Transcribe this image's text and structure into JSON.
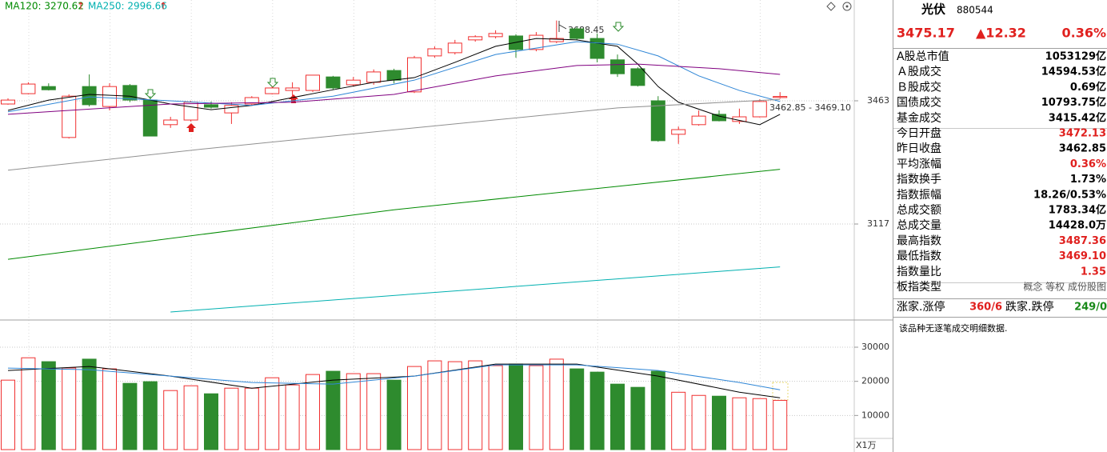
{
  "chart_data": [
    {
      "type": "candlestick",
      "legend_labels": [
        "MA120: 3270.62",
        "MA250: 2996.66"
      ],
      "legend_arrows": [
        "↑",
        "↑"
      ],
      "legend_colors": [
        "#008a00",
        "#00b0b0"
      ],
      "annotations": [
        "3688.45",
        "3462.85 - 3469.10"
      ],
      "up_color": "#f03030",
      "down_color": "#2e8b2e",
      "open": [
        3454,
        3483,
        3503,
        3360,
        3503,
        3447,
        3506,
        3465,
        3396,
        3409,
        3452,
        3429,
        3454,
        3483,
        3492,
        3492,
        3530,
        3508,
        3515,
        3548,
        3488,
        3589,
        3598,
        3634,
        3643,
        3645,
        3607,
        3629,
        3665,
        3638,
        3578,
        3553,
        3463,
        3369,
        3396,
        3425,
        3405,
        3418,
        3472.13
      ],
      "high": [
        3470,
        3515,
        3512,
        3481,
        3537,
        3512,
        3510,
        3476,
        3418,
        3463,
        3461,
        3459,
        3476,
        3503,
        3515,
        3535,
        3533,
        3530,
        3551,
        3553,
        3589,
        3616,
        3634,
        3647,
        3661,
        3650,
        3656,
        3688.45,
        3670,
        3652,
        3593,
        3557,
        3476,
        3391,
        3436,
        3436,
        3441,
        3467,
        3487.36
      ],
      "low": [
        3452,
        3481,
        3492,
        3357,
        3447,
        3436,
        3459,
        3364,
        3387,
        3405,
        3441,
        3398,
        3450,
        3481,
        3459,
        3488,
        3494,
        3503,
        3508,
        3512,
        3485,
        3584,
        3593,
        3629,
        3638,
        3584,
        3602,
        3625,
        3634,
        3571,
        3530,
        3503,
        3348,
        3342,
        3393,
        3405,
        3398,
        3416,
        3469.1
      ],
      "close": [
        3465,
        3510,
        3494,
        3476,
        3452,
        3503,
        3465,
        3364,
        3409,
        3459,
        3445,
        3450,
        3472,
        3499,
        3499,
        3535,
        3499,
        3521,
        3544,
        3521,
        3584,
        3609,
        3625,
        3643,
        3652,
        3607,
        3647,
        3638,
        3638,
        3582,
        3539,
        3506,
        3351,
        3382,
        3420,
        3407,
        3418,
        3461,
        3475.17
      ],
      "series": [
        {
          "color": "#000000",
          "x": [
            0,
            2,
            4,
            6,
            8,
            10,
            12,
            14,
            16,
            18,
            20,
            22,
            24,
            26,
            28,
            30,
            31,
            32,
            33,
            35,
            37,
            38
          ],
          "values": [
            3436,
            3465,
            3481,
            3476,
            3454,
            3438,
            3450,
            3472,
            3494,
            3515,
            3528,
            3571,
            3616,
            3638,
            3634,
            3616,
            3566,
            3503,
            3459,
            3420,
            3396,
            3425
          ]
        },
        {
          "color": "#2f86d6",
          "x": [
            0,
            4,
            8,
            12,
            16,
            20,
            24,
            28,
            30,
            32,
            34,
            36,
            38
          ],
          "values": [
            3432,
            3474,
            3463,
            3450,
            3476,
            3521,
            3593,
            3629,
            3622,
            3589,
            3533,
            3492,
            3461
          ]
        },
        {
          "color": "#800080",
          "x": [
            0,
            3,
            8,
            14,
            19,
            24,
            28,
            31,
            35,
            38
          ],
          "values": [
            3425,
            3436,
            3454,
            3459,
            3481,
            3533,
            3562,
            3566,
            3553,
            3537
          ]
        },
        {
          "color": "#909090",
          "x": [
            0,
            10,
            20,
            30,
            38
          ],
          "values": [
            3268,
            3330,
            3387,
            3443,
            3467
          ]
        },
        {
          "color": "#008a00",
          "x": [
            0,
            19,
            38
          ],
          "values": [
            3018,
            3157,
            3270.62
          ]
        },
        {
          "color": "#00b0b0",
          "x": [
            8,
            38
          ],
          "values": [
            2870,
            2996.66
          ]
        }
      ],
      "ylim": [
        2852,
        3746
      ],
      "yticks": [
        3117,
        3463
      ],
      "grid": true
    },
    {
      "type": "bar",
      "unit_label": "X1万",
      "values": [
        20350,
        26900,
        25760,
        23900,
        26500,
        23650,
        19400,
        19900,
        17300,
        18700,
        16350,
        18000,
        18000,
        21050,
        18950,
        22000,
        22950,
        22250,
        22250,
        20350,
        24350,
        26000,
        25760,
        26000,
        24600,
        25060,
        24600,
        26500,
        23650,
        22700,
        19180,
        18240,
        22950,
        16800,
        15880,
        15650,
        15180,
        14940,
        14428
      ],
      "colors": [
        "#f03030",
        "#f03030",
        "#2e8b2e",
        "#f03030",
        "#2e8b2e",
        "#f03030",
        "#2e8b2e",
        "#2e8b2e",
        "#f03030",
        "#f03030",
        "#2e8b2e",
        "#f03030",
        "#f03030",
        "#f03030",
        "#f03030",
        "#f03030",
        "#2e8b2e",
        "#f03030",
        "#f03030",
        "#2e8b2e",
        "#f03030",
        "#f03030",
        "#f03030",
        "#f03030",
        "#f03030",
        "#2e8b2e",
        "#f03030",
        "#f03030",
        "#2e8b2e",
        "#2e8b2e",
        "#2e8b2e",
        "#2e8b2e",
        "#2e8b2e",
        "#f03030",
        "#f03030",
        "#2e8b2e",
        "#f03030",
        "#f03030",
        "#f03030"
      ],
      "series": [
        {
          "color": "#000000",
          "x": [
            0,
            4,
            8,
            12,
            16,
            20,
            24,
            28,
            32,
            36,
            38
          ],
          "values": [
            23180,
            24350,
            21530,
            18000,
            20350,
            21530,
            25060,
            25060,
            21530,
            16820,
            15180
          ]
        },
        {
          "color": "#2f86d6",
          "x": [
            0,
            4,
            8,
            12,
            16,
            20,
            24,
            28,
            32,
            36,
            38
          ],
          "values": [
            23880,
            23410,
            21530,
            19650,
            19180,
            21530,
            24820,
            24820,
            23180,
            19650,
            17530
          ]
        }
      ],
      "ylim": [
        0,
        37500
      ],
      "yticks": [
        10000,
        20000,
        30000
      ],
      "grid": true
    }
  ],
  "panel": {
    "name": "光伏",
    "code": "880544",
    "price": "3475.17",
    "change": "▲12.32",
    "percent": "0.36%",
    "rows": [
      {
        "label": "A股总市值",
        "value": "1053129亿"
      },
      {
        "label": "Ａ股成交",
        "value": "14594.53亿"
      },
      {
        "label": "Ｂ股成交",
        "value": "0.69亿"
      },
      {
        "label": "国债成交",
        "value": "10793.75亿"
      },
      {
        "label": "基金成交",
        "value": "3415.42亿"
      },
      {
        "label": "今日开盘",
        "value": "3472.13",
        "color": "#e0201e"
      },
      {
        "label": "昨日收盘",
        "value": "3462.85"
      },
      {
        "label": "平均涨幅",
        "value": "0.36%",
        "color": "#e0201e"
      },
      {
        "label": "指数换手",
        "value": "1.73%"
      },
      {
        "label": "指数振幅",
        "value": "18.26/0.53%"
      },
      {
        "label": "总成交额",
        "value": "1783.34亿"
      },
      {
        "label": "总成交量",
        "value": "14428.0万"
      },
      {
        "label": "最高指数",
        "value": "3487.36",
        "color": "#e0201e"
      },
      {
        "label": "最低指数",
        "value": "3469.10",
        "color": "#e0201e"
      },
      {
        "label": "指数量比",
        "value": "1.35",
        "color": "#e0201e"
      },
      {
        "label": "板指类型",
        "value": "概念 等权 成份股图",
        "color": "#555555"
      }
    ],
    "breadth": {
      "up_label": "涨家.涨停",
      "up_value": "360/6",
      "down_label": "跌家.跌停",
      "down_value": "249/0"
    },
    "note": "该品种无逐笔成交明细数据."
  }
}
